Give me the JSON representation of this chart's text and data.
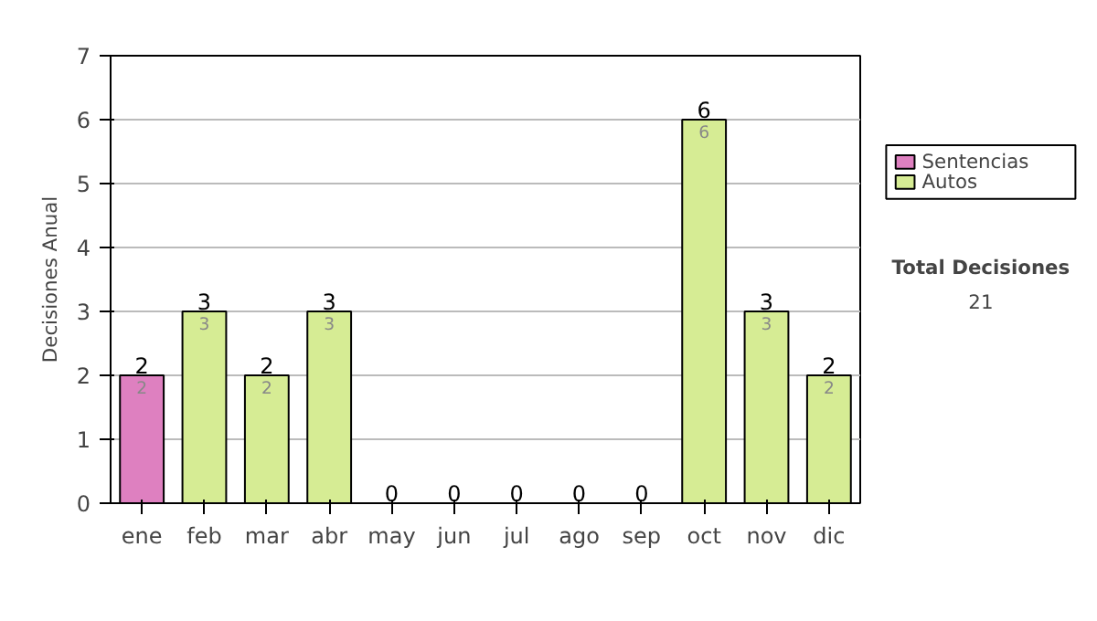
{
  "chart_data": {
    "type": "bar",
    "stacked": true,
    "ylabel": "Decisiones Anual",
    "categories": [
      "ene",
      "feb",
      "mar",
      "abr",
      "may",
      "jun",
      "jul",
      "ago",
      "sep",
      "oct",
      "nov",
      "dic"
    ],
    "series": [
      {
        "name": "Sentencias",
        "color": "#de80c0",
        "values": [
          2,
          0,
          0,
          0,
          0,
          0,
          0,
          0,
          0,
          0,
          0,
          0
        ],
        "value_labels": [
          "2",
          null,
          null,
          null,
          null,
          null,
          null,
          null,
          null,
          null,
          null,
          null
        ]
      },
      {
        "name": "Autos",
        "color": "#d6ec94",
        "values": [
          0,
          3,
          2,
          3,
          0,
          0,
          0,
          0,
          0,
          6,
          3,
          2
        ],
        "value_labels": [
          null,
          "3",
          "2",
          "3",
          null,
          null,
          null,
          null,
          null,
          "6",
          "3",
          "2"
        ]
      }
    ],
    "totals": [
      "2",
      "3",
      "2",
      "3",
      "0",
      "0",
      "0",
      "0",
      "0",
      "6",
      "3",
      "2"
    ],
    "ylim": [
      0,
      7
    ],
    "yticks": [
      0,
      1,
      2,
      3,
      4,
      5,
      6,
      7
    ],
    "grid": "y",
    "legend": "right",
    "annotations": [
      "Total Decisiones",
      "21"
    ]
  }
}
